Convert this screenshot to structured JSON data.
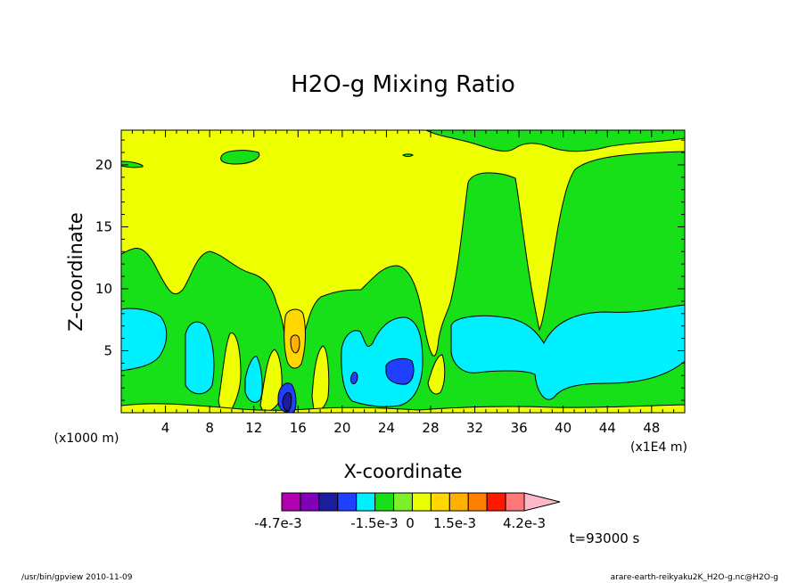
{
  "chart_data": {
    "type": "heatmap",
    "title": "H2O-g Mixing Ratio",
    "xlabel": "X-coordinate",
    "ylabel": "Z-coordinate",
    "x_unit_left": "(x1000 m)",
    "x_unit_right": "(x1E4 m)",
    "xlim": [
      0,
      51
    ],
    "ylim": [
      0,
      22.8
    ],
    "x_ticks": [
      4,
      8,
      12,
      16,
      20,
      24,
      28,
      32,
      36,
      40,
      44,
      48
    ],
    "x_tick_labels": [
      "4",
      "8",
      "12",
      "16",
      "20",
      "24",
      "28",
      "32",
      "36",
      "40",
      "44",
      "48"
    ],
    "y_ticks": [
      5,
      10,
      15,
      20
    ],
    "y_tick_labels": [
      "5",
      "10",
      "15",
      "20"
    ],
    "time_label": "t=93000 s",
    "colorbar": {
      "colors": [
        "#b000b0",
        "#8000b8",
        "#1c1c9c",
        "#1f40ff",
        "#00f0ff",
        "#18e018",
        "#7ef02a",
        "#e8ff00",
        "#ffd800",
        "#ffb000",
        "#ff8000",
        "#ff1800",
        "#ff7878",
        "#ffb8c8"
      ],
      "labels": [
        "-4.7e-3",
        "-1.5e-3",
        "0",
        "1.5e-3",
        "4.2e-3"
      ]
    },
    "regions": [
      {
        "level": "yellow",
        "color": "#eeff00"
      },
      {
        "level": "green",
        "color": "#18e018"
      },
      {
        "level": "cyan",
        "color": "#00f0ff"
      },
      {
        "level": "blue",
        "color": "#1f40ff"
      },
      {
        "level": "darkblue",
        "color": "#1c1c9c"
      },
      {
        "level": "light-orange",
        "color": "#ffd800"
      },
      {
        "level": "orange",
        "color": "#ffb000"
      }
    ]
  },
  "footer": {
    "left": "/usr/bin/gpview   2010-11-09",
    "right": "arare-earth-reikyaku2K_H2O-g.nc@H2O-g"
  }
}
